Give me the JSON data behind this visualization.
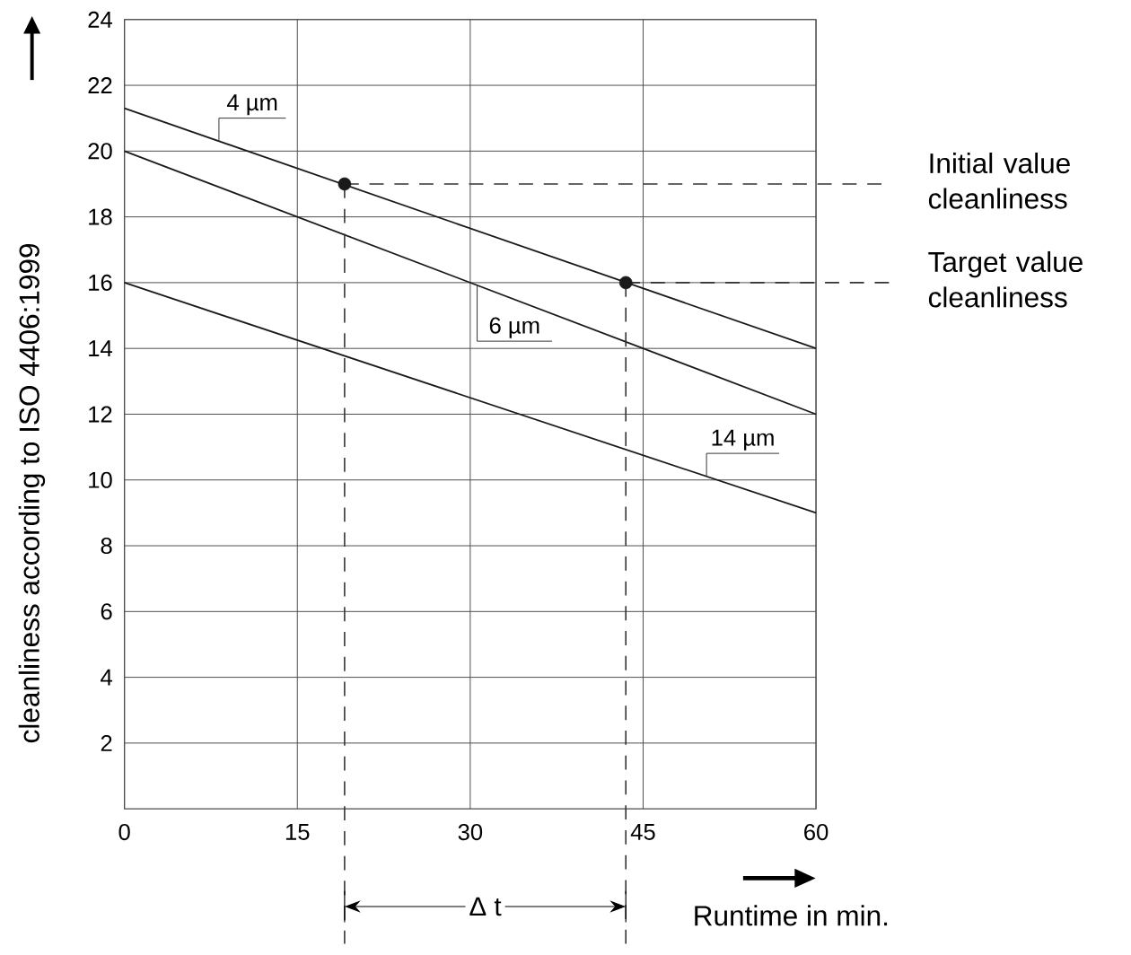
{
  "chart_data": {
    "type": "line",
    "xlabel": "Runtime in min.",
    "ylabel": "cleanliness according to ISO 4406:1999",
    "xlim": [
      0,
      60
    ],
    "ylim": [
      0,
      24
    ],
    "xticks": [
      0,
      15,
      30,
      45,
      60
    ],
    "yticks": [
      2,
      4,
      6,
      8,
      10,
      12,
      14,
      16,
      18,
      20,
      22,
      24
    ],
    "grid": true,
    "series": [
      {
        "name": "4 µm",
        "color": "#1a1a1a",
        "x": [
          0,
          60
        ],
        "values": [
          21.3,
          14
        ]
      },
      {
        "name": "6 µm",
        "color": "#1a1a1a",
        "x": [
          0,
          60
        ],
        "values": [
          20,
          12
        ]
      },
      {
        "name": "14 µm",
        "color": "#1a1a1a",
        "x": [
          0,
          60
        ],
        "values": [
          16,
          9
        ]
      },
      {
        "type": "scatter",
        "marker": "circle",
        "color": "#1a1a1a",
        "x": [
          19.1,
          43.5
        ],
        "values": [
          19,
          16
        ]
      }
    ],
    "ref_lines": [
      {
        "axis": "y",
        "value": 19,
        "label": "Initial value cleanliness",
        "line_style": "dashed"
      },
      {
        "axis": "y",
        "value": 16,
        "label": "Target value cleanliness",
        "line_style": "dashed"
      },
      {
        "axis": "x",
        "value": 19.1,
        "line_style": "dashed"
      },
      {
        "axis": "x",
        "value": 43.5,
        "line_style": "dashed"
      }
    ],
    "annotations": [
      "Δ t"
    ]
  }
}
